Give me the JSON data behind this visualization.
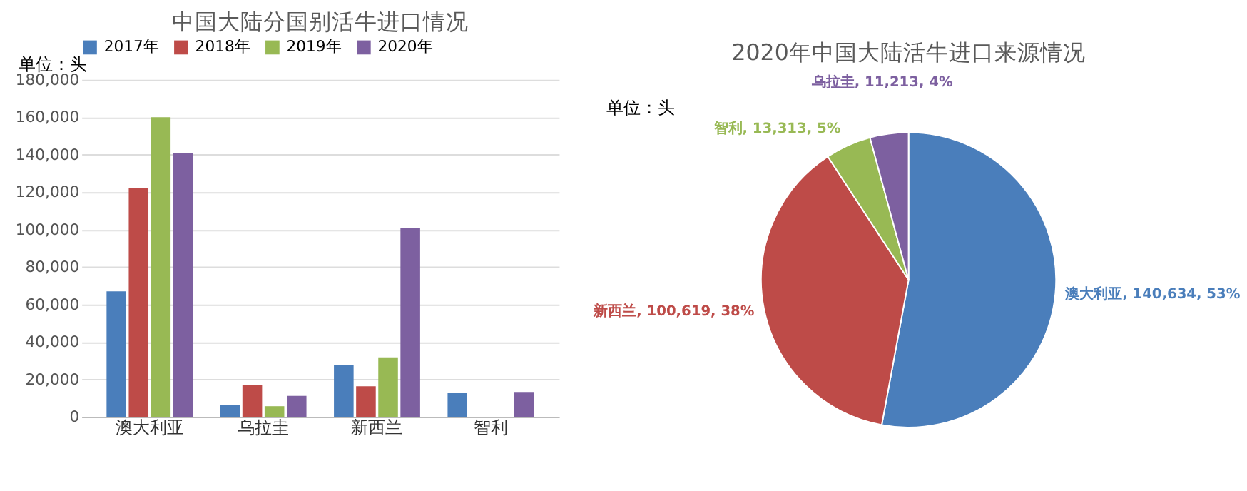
{
  "chart_data": [
    {
      "type": "bar",
      "title": "中国大陆分国别活牛进口情况",
      "categories": [
        "澳大利亚",
        "乌拉圭",
        "新西兰",
        "智利"
      ],
      "series": [
        {
          "name": "2017年",
          "color": "#4a7ebb",
          "values": [
            67000,
            6500,
            27700,
            13000
          ]
        },
        {
          "name": "2018年",
          "color": "#be4b48",
          "values": [
            122000,
            17100,
            16300,
            null
          ]
        },
        {
          "name": "2019年",
          "color": "#98b954",
          "values": [
            160000,
            5700,
            31800,
            null
          ]
        },
        {
          "name": "2020年",
          "color": "#7d60a0",
          "values": [
            140634,
            11213,
            100619,
            13313
          ]
        }
      ],
      "ylim": [
        0,
        180000
      ],
      "yticks": [
        0,
        {
          "value": 20000,
          "label": "20,000"
        },
        {
          "value": 40000,
          "label": "40,000"
        },
        {
          "value": 60000,
          "label": "60,000"
        },
        {
          "value": 80000,
          "label": "80,000"
        },
        {
          "value": 100000,
          "label": "100,000"
        },
        {
          "value": 120000,
          "label": "120,000"
        },
        {
          "value": 140000,
          "label": "140,000"
        },
        {
          "value": 160000,
          "label": "160,000"
        },
        {
          "value": 180000,
          "label": "180,000"
        }
      ],
      "grid": "y",
      "legend": "top",
      "annotations": [
        "单位：头"
      ]
    },
    {
      "type": "pie",
      "title": "2020年中国大陆活牛进口来源情况",
      "categories": [
        "澳大利亚",
        "新西兰",
        "智利",
        "乌拉圭"
      ],
      "values": [
        140634,
        100619,
        13313,
        11213
      ],
      "colors": [
        "#4a7ebb",
        "#be4b48",
        "#98b954",
        "#7d60a0"
      ],
      "value_labels": [
        "140,634, 53%",
        "100,619, 38%",
        "13,313, 5%",
        "11,213, 4%"
      ],
      "annotations": [
        "单位：头"
      ]
    }
  ]
}
